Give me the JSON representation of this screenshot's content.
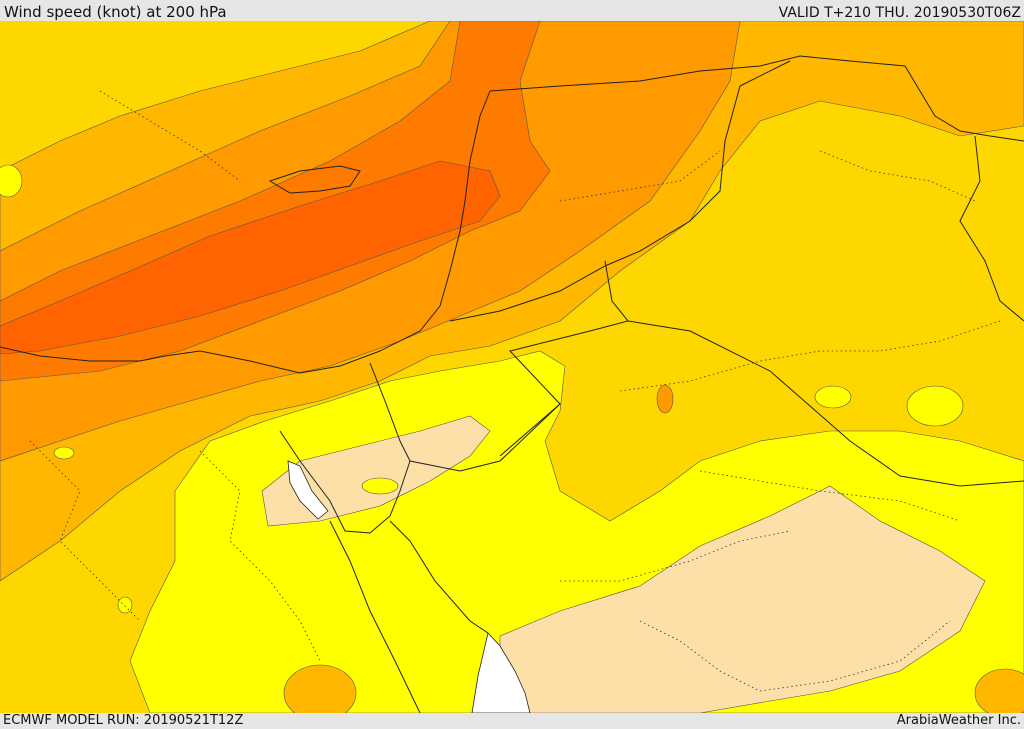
{
  "header": {
    "title": "Wind speed (knot) at 200 hPa",
    "valid": "VALID T+210 THU. 20190530T06Z"
  },
  "footer": {
    "model_run": "ECMWF MODEL RUN: 20190521T12Z",
    "credit": "ArabiaWeather Inc."
  },
  "palette": {
    "frame": "#e6e6e6",
    "background": "#ffd700",
    "light_yellow": "#ffff00",
    "pale": "#fde0a8",
    "orange_light": "#ffb700",
    "orange": "#ff9a00",
    "orange_dark": "#ff7b00",
    "orange_darkest": "#ff6400",
    "boundary": "#222222"
  }
}
